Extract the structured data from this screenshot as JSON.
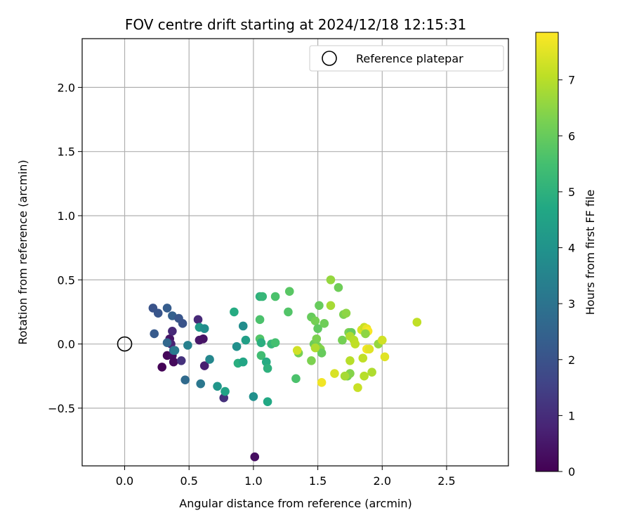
{
  "chart_data": {
    "type": "scatter",
    "title": "FOV centre drift starting at 2024/12/18 12:15:31",
    "xlabel": "Angular distance from reference (arcmin)",
    "ylabel": "Rotation from reference (arcmin)",
    "xlim": [
      -0.33,
      2.98
    ],
    "ylim": [
      -0.95,
      2.38
    ],
    "xticks": [
      0.0,
      0.5,
      1.0,
      1.5,
      2.0,
      2.5
    ],
    "xtick_labels": [
      "0.0",
      "0.5",
      "1.0",
      "1.5",
      "2.0",
      "2.5"
    ],
    "yticks": [
      -0.5,
      0.0,
      0.5,
      1.0,
      1.5,
      2.0
    ],
    "ytick_labels": [
      "−0.5",
      "0.0",
      "0.5",
      "1.0",
      "1.5",
      "2.0"
    ],
    "grid": true,
    "legend": {
      "label": "Reference platepar",
      "placement": "top-right"
    },
    "reference_point": {
      "x": 0.0,
      "y": 0.0
    },
    "colorbar": {
      "label": "Hours from first FF file",
      "colormap": "viridis",
      "range": [
        0,
        7.85
      ],
      "ticks": [
        0,
        1,
        2,
        3,
        4,
        5,
        6,
        7
      ],
      "tick_labels": [
        "0",
        "1",
        "2",
        "3",
        "4",
        "5",
        "6",
        "7"
      ]
    },
    "points": [
      {
        "x": 0.29,
        "y": -0.18,
        "c": 0.05
      },
      {
        "x": 0.33,
        "y": -0.09,
        "c": 0.15
      },
      {
        "x": 0.37,
        "y": -0.09,
        "c": 0.25
      },
      {
        "x": 0.38,
        "y": -0.14,
        "c": 0.2
      },
      {
        "x": 0.35,
        "y": 0.04,
        "c": 0.45
      },
      {
        "x": 0.36,
        "y": 0.0,
        "c": 0.8
      },
      {
        "x": 0.37,
        "y": 0.1,
        "c": 0.9
      },
      {
        "x": 0.44,
        "y": -0.13,
        "c": 1.1
      },
      {
        "x": 0.58,
        "y": 0.03,
        "c": 0.5
      },
      {
        "x": 0.61,
        "y": 0.04,
        "c": 0.4
      },
      {
        "x": 0.62,
        "y": -0.17,
        "c": 0.7
      },
      {
        "x": 0.57,
        "y": 0.19,
        "c": 0.9
      },
      {
        "x": 0.77,
        "y": -0.42,
        "c": 1.1
      },
      {
        "x": 1.01,
        "y": -0.88,
        "c": 0.3
      },
      {
        "x": 0.22,
        "y": 0.28,
        "c": 2.0
      },
      {
        "x": 0.26,
        "y": 0.24,
        "c": 2.1
      },
      {
        "x": 0.33,
        "y": 0.28,
        "c": 2.3
      },
      {
        "x": 0.37,
        "y": 0.22,
        "c": 2.4
      },
      {
        "x": 0.42,
        "y": 0.2,
        "c": 2.1
      },
      {
        "x": 0.45,
        "y": 0.16,
        "c": 2.0
      },
      {
        "x": 0.23,
        "y": 0.08,
        "c": 2.2
      },
      {
        "x": 0.33,
        "y": 0.01,
        "c": 2.6
      },
      {
        "x": 0.38,
        "y": -0.05,
        "c": 2.8
      },
      {
        "x": 0.39,
        "y": -0.05,
        "c": 3.2
      },
      {
        "x": 0.47,
        "y": -0.28,
        "c": 2.7
      },
      {
        "x": 0.49,
        "y": -0.01,
        "c": 3.4
      },
      {
        "x": 0.59,
        "y": -0.31,
        "c": 3.1
      },
      {
        "x": 0.58,
        "y": 0.13,
        "c": 4.2
      },
      {
        "x": 0.62,
        "y": 0.12,
        "c": 3.8
      },
      {
        "x": 0.66,
        "y": -0.12,
        "c": 3.6
      },
      {
        "x": 0.72,
        "y": -0.33,
        "c": 4.1
      },
      {
        "x": 0.78,
        "y": -0.37,
        "c": 4.5
      },
      {
        "x": 0.85,
        "y": 0.25,
        "c": 4.8
      },
      {
        "x": 0.87,
        "y": -0.02,
        "c": 3.9
      },
      {
        "x": 0.88,
        "y": -0.15,
        "c": 4.9
      },
      {
        "x": 0.92,
        "y": 0.14,
        "c": 3.8
      },
      {
        "x": 0.92,
        "y": -0.14,
        "c": 4.6
      },
      {
        "x": 0.94,
        "y": 0.03,
        "c": 4.4
      },
      {
        "x": 1.0,
        "y": -0.41,
        "c": 3.9
      },
      {
        "x": 1.05,
        "y": 0.37,
        "c": 5.0
      },
      {
        "x": 1.07,
        "y": 0.37,
        "c": 5.2
      },
      {
        "x": 1.05,
        "y": 0.19,
        "c": 5.6
      },
      {
        "x": 1.05,
        "y": 0.04,
        "c": 5.7
      },
      {
        "x": 1.06,
        "y": 0.01,
        "c": 4.9
      },
      {
        "x": 1.06,
        "y": -0.09,
        "c": 5.4
      },
      {
        "x": 1.1,
        "y": -0.14,
        "c": 4.8
      },
      {
        "x": 1.11,
        "y": -0.19,
        "c": 5.0
      },
      {
        "x": 1.11,
        "y": -0.45,
        "c": 4.7
      },
      {
        "x": 1.14,
        "y": 0.0,
        "c": 5.2
      },
      {
        "x": 1.17,
        "y": 0.01,
        "c": 5.5
      },
      {
        "x": 1.17,
        "y": 0.37,
        "c": 5.6
      },
      {
        "x": 1.28,
        "y": 0.41,
        "c": 5.8
      },
      {
        "x": 1.27,
        "y": 0.25,
        "c": 5.7
      },
      {
        "x": 1.33,
        "y": -0.27,
        "c": 5.6
      },
      {
        "x": 1.35,
        "y": -0.07,
        "c": 6.2
      },
      {
        "x": 1.45,
        "y": 0.21,
        "c": 6.0
      },
      {
        "x": 1.48,
        "y": 0.18,
        "c": 6.2
      },
      {
        "x": 1.47,
        "y": 0.0,
        "c": 6.1
      },
      {
        "x": 1.49,
        "y": 0.04,
        "c": 6.3
      },
      {
        "x": 1.5,
        "y": 0.12,
        "c": 5.9
      },
      {
        "x": 1.51,
        "y": 0.3,
        "c": 6.0
      },
      {
        "x": 1.5,
        "y": -0.02,
        "c": 6.2
      },
      {
        "x": 1.52,
        "y": -0.04,
        "c": 6.4
      },
      {
        "x": 1.45,
        "y": -0.13,
        "c": 6.3
      },
      {
        "x": 1.53,
        "y": -0.07,
        "c": 6.0
      },
      {
        "x": 1.55,
        "y": 0.16,
        "c": 6.1
      },
      {
        "x": 1.6,
        "y": 0.5,
        "c": 6.6
      },
      {
        "x": 1.66,
        "y": 0.44,
        "c": 6.1
      },
      {
        "x": 1.6,
        "y": 0.3,
        "c": 6.8
      },
      {
        "x": 1.7,
        "y": 0.23,
        "c": 6.3
      },
      {
        "x": 1.72,
        "y": 0.24,
        "c": 6.5
      },
      {
        "x": 1.69,
        "y": 0.03,
        "c": 6.2
      },
      {
        "x": 1.74,
        "y": 0.09,
        "c": 6.3
      },
      {
        "x": 1.76,
        "y": 0.09,
        "c": 6.0
      },
      {
        "x": 1.73,
        "y": -0.25,
        "c": 6.2
      },
      {
        "x": 1.75,
        "y": -0.23,
        "c": 6.4
      },
      {
        "x": 1.71,
        "y": -0.25,
        "c": 6.8
      },
      {
        "x": 1.75,
        "y": 0.06,
        "c": 6.9
      },
      {
        "x": 1.78,
        "y": 0.03,
        "c": 7.0
      },
      {
        "x": 1.79,
        "y": 0.0,
        "c": 7.1
      },
      {
        "x": 1.75,
        "y": -0.13,
        "c": 7.0
      },
      {
        "x": 1.81,
        "y": -0.34,
        "c": 7.2
      },
      {
        "x": 1.84,
        "y": 0.11,
        "c": 7.4
      },
      {
        "x": 1.86,
        "y": 0.13,
        "c": 7.2
      },
      {
        "x": 1.88,
        "y": 0.12,
        "c": 7.6
      },
      {
        "x": 1.89,
        "y": 0.1,
        "c": 7.8
      },
      {
        "x": 1.87,
        "y": 0.08,
        "c": 6.5
      },
      {
        "x": 1.88,
        "y": -0.04,
        "c": 7.7
      },
      {
        "x": 1.9,
        "y": -0.04,
        "c": 7.5
      },
      {
        "x": 1.85,
        "y": -0.11,
        "c": 7.1
      },
      {
        "x": 1.86,
        "y": -0.25,
        "c": 7.0
      },
      {
        "x": 1.92,
        "y": -0.22,
        "c": 6.9
      },
      {
        "x": 1.97,
        "y": 0.0,
        "c": 6.6
      },
      {
        "x": 2.0,
        "y": 0.03,
        "c": 7.3
      },
      {
        "x": 2.02,
        "y": -0.1,
        "c": 7.5
      },
      {
        "x": 2.27,
        "y": 0.17,
        "c": 7.1
      },
      {
        "x": 1.53,
        "y": -0.3,
        "c": 7.7
      },
      {
        "x": 1.63,
        "y": -0.23,
        "c": 7.4
      },
      {
        "x": 1.34,
        "y": -0.05,
        "c": 7.3
      },
      {
        "x": 1.48,
        "y": -0.03,
        "c": 6.9
      }
    ]
  }
}
